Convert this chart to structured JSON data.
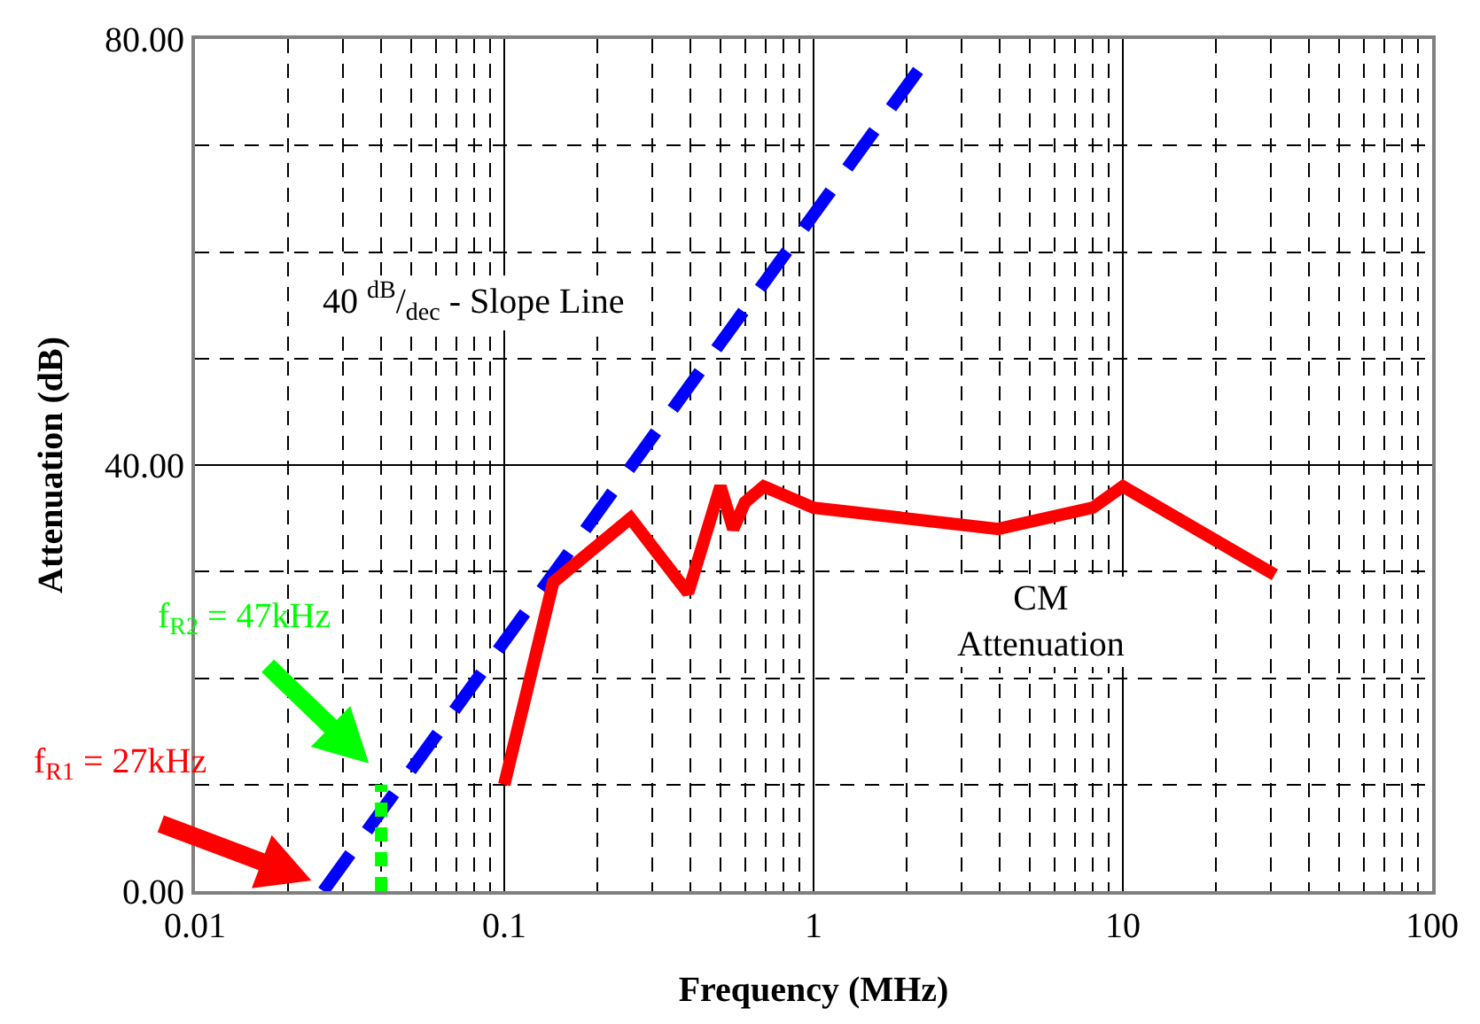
{
  "chart_data": {
    "type": "line",
    "xlabel": "Frequency (MHz)",
    "ylabel": "Attenuation (dB)",
    "log": "x",
    "grid": true,
    "marker": "none",
    "xlim": [
      0.01,
      100
    ],
    "ylim": [
      0,
      80
    ],
    "xticks": [
      {
        "value": 0.01,
        "label": "0.01"
      },
      {
        "value": 0.02,
        "label": null
      },
      {
        "value": 0.03,
        "label": null
      },
      {
        "value": 0.04,
        "label": null
      },
      {
        "value": 0.05,
        "label": null
      },
      {
        "value": 0.06,
        "label": null
      },
      {
        "value": 0.07,
        "label": null
      },
      {
        "value": 0.08,
        "label": null
      },
      {
        "value": 0.09,
        "label": null
      },
      {
        "value": 0.1,
        "label": "0.1"
      },
      {
        "value": 0.2,
        "label": null
      },
      {
        "value": 0.3,
        "label": null
      },
      {
        "value": 0.4,
        "label": null
      },
      {
        "value": 0.5,
        "label": null
      },
      {
        "value": 0.6,
        "label": null
      },
      {
        "value": 0.7,
        "label": null
      },
      {
        "value": 0.8,
        "label": null
      },
      {
        "value": 0.9,
        "label": null
      },
      1,
      {
        "value": 2,
        "label": null
      },
      {
        "value": 3,
        "label": null
      },
      {
        "value": 4,
        "label": null
      },
      {
        "value": 5,
        "label": null
      },
      {
        "value": 6,
        "label": null
      },
      {
        "value": 7,
        "label": null
      },
      {
        "value": 8,
        "label": null
      },
      {
        "value": 9,
        "label": null
      },
      10,
      {
        "value": 20,
        "label": null
      },
      {
        "value": 30,
        "label": null
      },
      {
        "value": 40,
        "label": null
      },
      {
        "value": 50,
        "label": null
      },
      {
        "value": 60,
        "label": null
      },
      {
        "value": 70,
        "label": null
      },
      {
        "value": 80,
        "label": null
      },
      {
        "value": 90,
        "label": null
      },
      100
    ],
    "yticks": [
      {
        "value": 0,
        "label": "0.00"
      },
      {
        "value": 10,
        "label": null
      },
      {
        "value": 20,
        "label": null
      },
      {
        "value": 30,
        "label": null
      },
      {
        "value": 40,
        "label": "40.00"
      },
      {
        "value": 50,
        "label": null
      },
      {
        "value": 60,
        "label": null
      },
      {
        "value": 70,
        "label": null
      },
      {
        "value": 80,
        "label": "80.00"
      }
    ],
    "series": [
      {
        "color": "#0000ff",
        "line_style": "dashed",
        "x": [
          0.026,
          2.3
        ],
        "values": [
          0,
          78
        ]
      },
      {
        "color": "#00ff00",
        "line_style": "dotted",
        "x": [
          0.04,
          0.04
        ],
        "values": [
          0,
          10
        ]
      },
      {
        "color": "#ff0000",
        "line_style": "solid",
        "x": [
          0.1,
          0.144,
          0.256,
          0.393,
          0.5,
          0.55,
          0.6,
          0.69,
          1,
          3.95,
          8,
          10,
          31
        ],
        "values": [
          10,
          29,
          35,
          28,
          38,
          34,
          36.5,
          38,
          36,
          34,
          36,
          38,
          29.7
        ]
      }
    ],
    "annotations": [
      "40 $^{dB}$/$_{dec}$ - Slope Line",
      "CM\nAttenuation",
      "f$_{R2}$ = 47kHz",
      "f$_{R1}$ = 27kHz"
    ]
  }
}
